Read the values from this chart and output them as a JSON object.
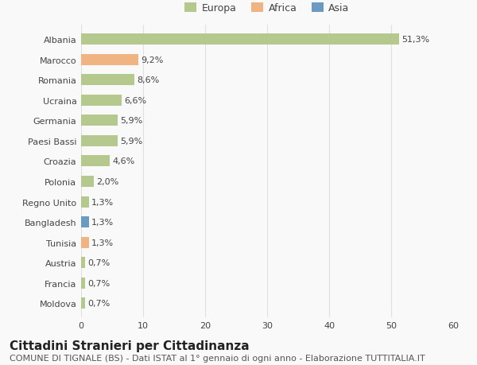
{
  "categories": [
    "Albania",
    "Marocco",
    "Romania",
    "Ucraina",
    "Germania",
    "Paesi Bassi",
    "Croazia",
    "Polonia",
    "Regno Unito",
    "Bangladesh",
    "Tunisia",
    "Austria",
    "Francia",
    "Moldova"
  ],
  "values": [
    51.3,
    9.2,
    8.6,
    6.6,
    5.9,
    5.9,
    4.6,
    2.0,
    1.3,
    1.3,
    1.3,
    0.7,
    0.7,
    0.7
  ],
  "labels": [
    "51,3%",
    "9,2%",
    "8,6%",
    "6,6%",
    "5,9%",
    "5,9%",
    "4,6%",
    "2,0%",
    "1,3%",
    "1,3%",
    "1,3%",
    "0,7%",
    "0,7%",
    "0,7%"
  ],
  "colors": [
    "#b5c98e",
    "#f0b482",
    "#b5c98e",
    "#b5c98e",
    "#b5c98e",
    "#b5c98e",
    "#b5c98e",
    "#b5c98e",
    "#b5c98e",
    "#6b9bc3",
    "#f0b482",
    "#b5c98e",
    "#b5c98e",
    "#b5c98e"
  ],
  "legend_labels": [
    "Europa",
    "Africa",
    "Asia"
  ],
  "legend_colors": [
    "#b5c98e",
    "#f0b482",
    "#6b9bc3"
  ],
  "xlim": [
    0,
    60
  ],
  "xticks": [
    0,
    10,
    20,
    30,
    40,
    50,
    60
  ],
  "title": "Cittadini Stranieri per Cittadinanza",
  "subtitle": "COMUNE DI TIGNALE (BS) - Dati ISTAT al 1° gennaio di ogni anno - Elaborazione TUTTITALIA.IT",
  "bg_color": "#f9f9f9",
  "grid_color": "#e0e0e0",
  "bar_height": 0.55,
  "label_fontsize": 8,
  "tick_fontsize": 8,
  "title_fontsize": 11,
  "subtitle_fontsize": 8
}
